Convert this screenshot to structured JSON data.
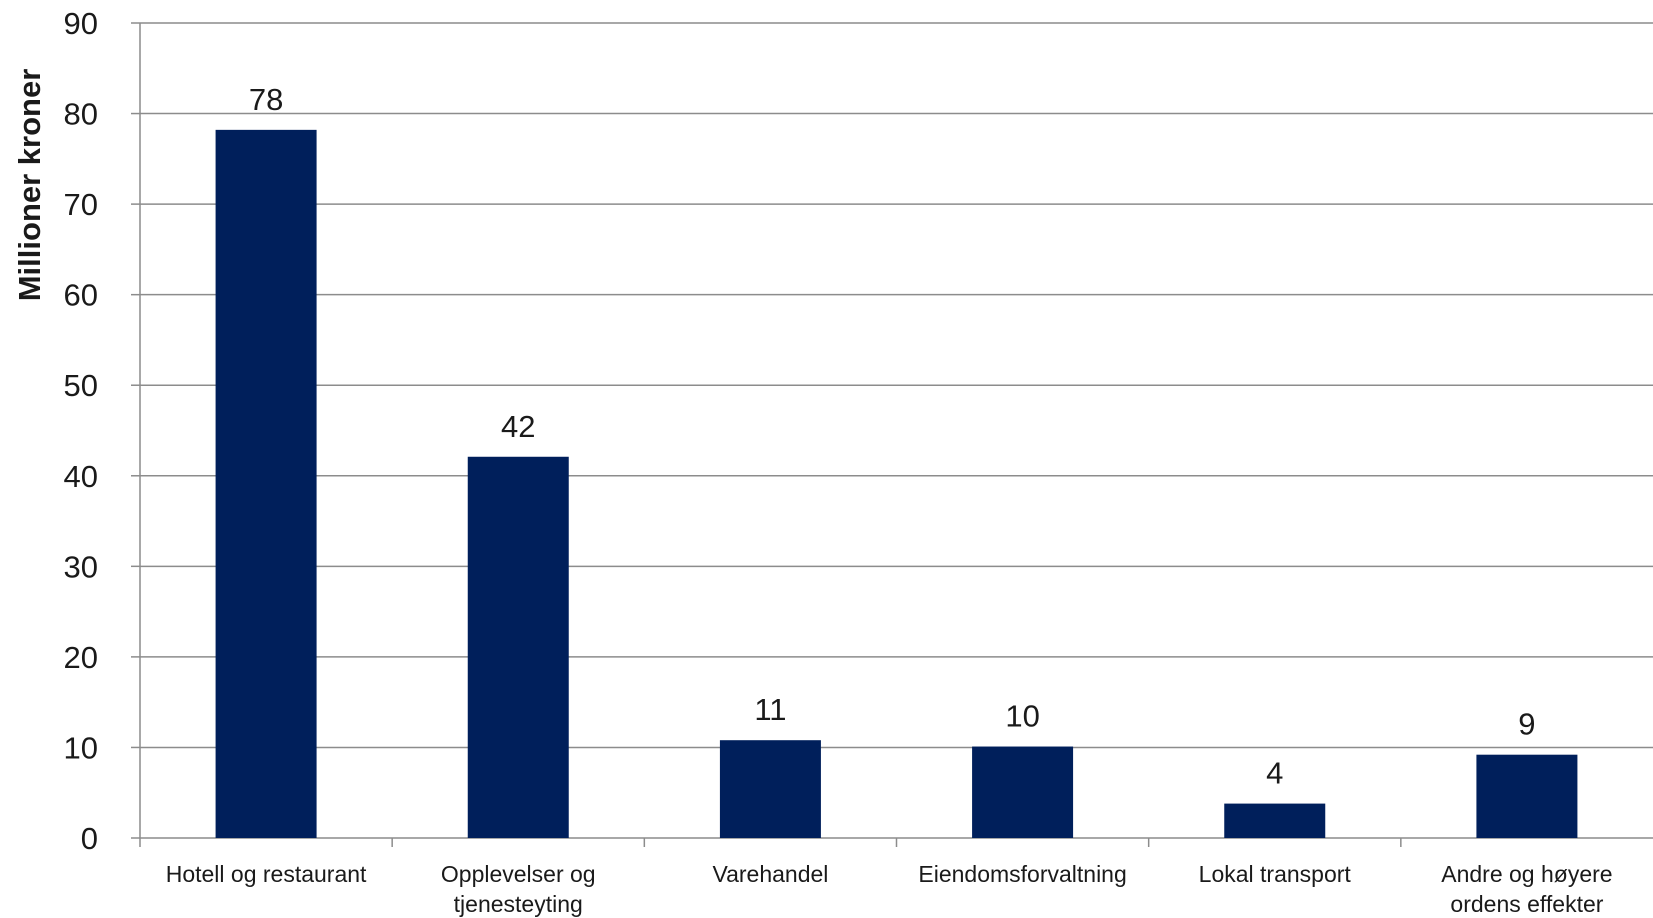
{
  "chart_data": {
    "type": "bar",
    "title": "",
    "xlabel": "",
    "ylabel": "Millioner kroner",
    "ylim": [
      0,
      90
    ],
    "yticks": [
      0,
      10,
      20,
      30,
      40,
      50,
      60,
      70,
      80,
      90
    ],
    "grid": true,
    "legend": "none",
    "bar_color": "#001F5B",
    "grid_color": "#8C8C8C",
    "categories": [
      [
        "Hotell og restaurant"
      ],
      [
        "Opplevelser og",
        "tjenesteyting"
      ],
      [
        "Varehandel"
      ],
      [
        "Eiendomsforvaltning"
      ],
      [
        "Lokal transport"
      ],
      [
        "Andre og høyere",
        "ordens effekter"
      ]
    ],
    "values": [
      78.2,
      42.1,
      10.8,
      10.1,
      3.8,
      9.2
    ],
    "data_labels": [
      "78",
      "42",
      "11",
      "10",
      "4",
      "9"
    ]
  }
}
